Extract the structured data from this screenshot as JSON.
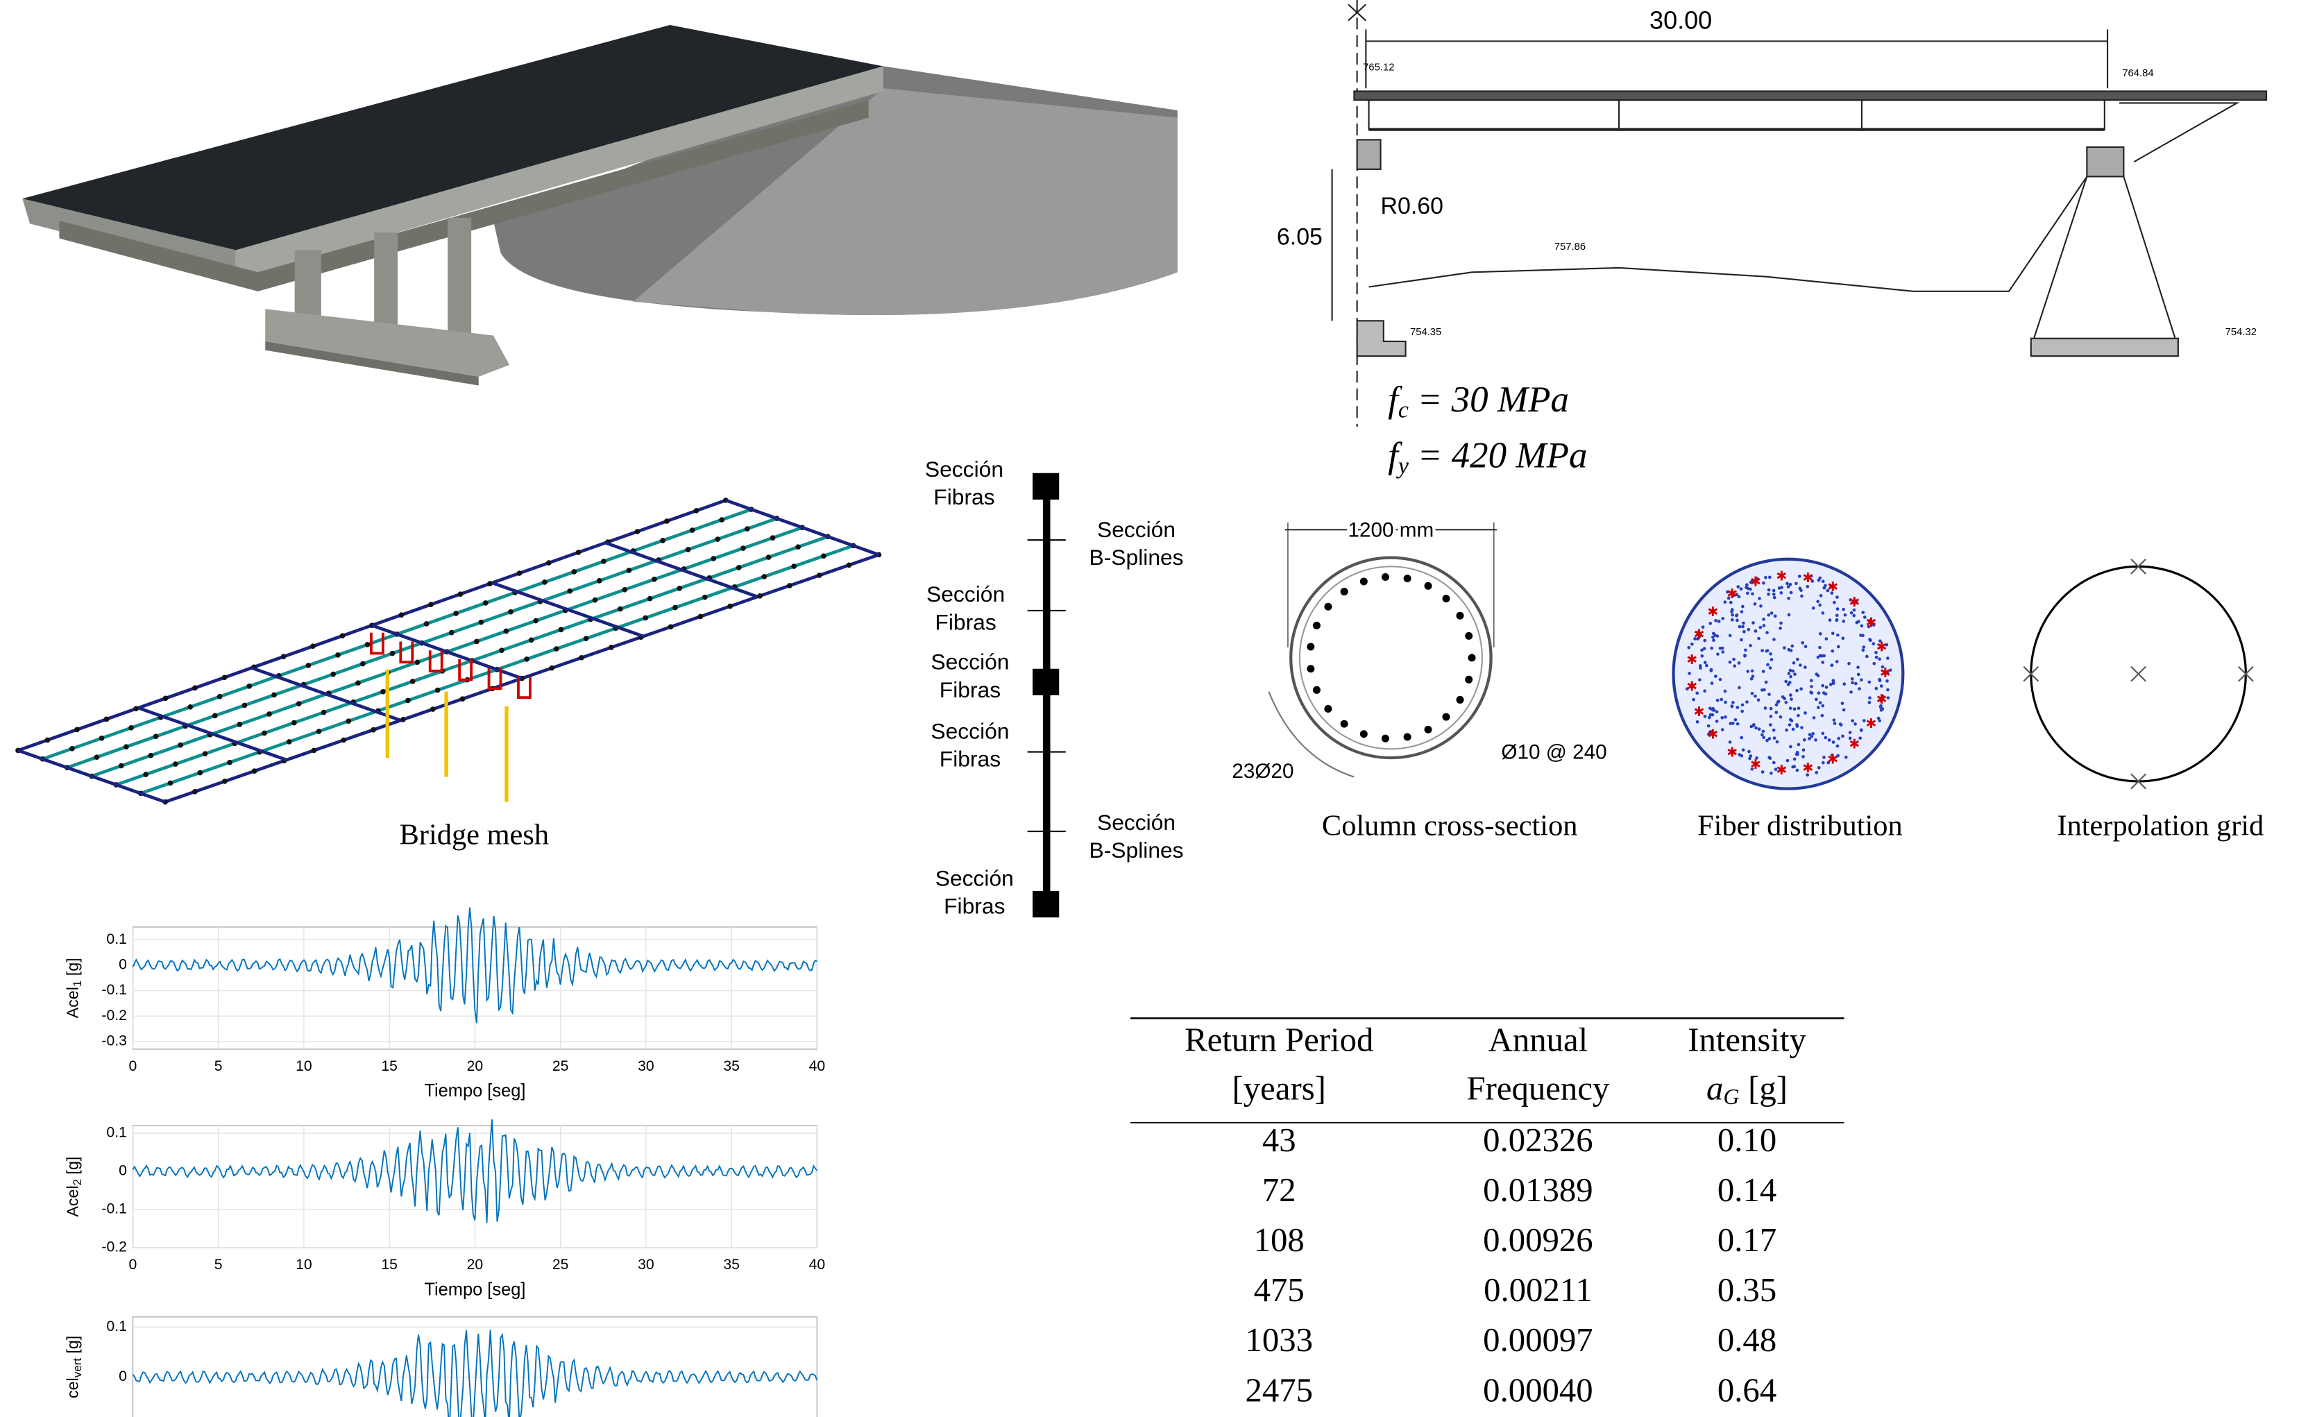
{
  "drawing": {
    "span": "30.00",
    "elev_left_top": "765.12",
    "elev_right_top": "764.84",
    "height": "6.05",
    "radius": "R0.60",
    "ground": "757.86",
    "elev_left_base": "754.35",
    "elev_right_base": "754.32",
    "fc": {
      "symbol": "f",
      "sub": "c",
      "text": "= 30 MPa"
    },
    "fy": {
      "symbol": "f",
      "sub": "y",
      "text": "= 420 MPa"
    }
  },
  "mesh_caption": "Bridge mesh",
  "element_labels": [
    [
      "Sección",
      "Fibras"
    ],
    [
      "Sección",
      "B-Splines"
    ],
    [
      "Sección",
      "Fibras"
    ],
    [
      "Sección",
      "Fibras"
    ],
    [
      "Sección",
      "Fibras"
    ],
    [
      "Sección",
      "B-Splines"
    ],
    [
      "Sección",
      "Fibras"
    ]
  ],
  "sections": {
    "diameter": "1200 mm",
    "bars": "23Ø20",
    "stirrups": "Ø10 @ 240",
    "captions": [
      "Column cross-section",
      "Fiber distribution",
      "Interpolation grid"
    ]
  },
  "accelerograms": [
    {
      "ylabel": {
        "text": "Acel",
        "sub": "1",
        "unit": "[g]"
      },
      "xlabel": "Tiempo [seg]",
      "xlim": [
        0,
        40
      ],
      "xticks": [
        0,
        5,
        10,
        15,
        20,
        25,
        30,
        35,
        40
      ],
      "ylim": [
        -0.33,
        0.15
      ],
      "yticks": [
        0.1,
        0,
        -0.1,
        -0.2,
        -0.3
      ]
    },
    {
      "ylabel": {
        "text": "Acel",
        "sub": "2",
        "unit": "[g]"
      },
      "xlabel": "Tiempo [seg]",
      "xlim": [
        0,
        40
      ],
      "xticks": [
        0,
        5,
        10,
        15,
        20,
        25,
        30,
        35,
        40
      ],
      "ylim": [
        -0.2,
        0.12
      ],
      "yticks": [
        0.1,
        0,
        -0.1,
        -0.2
      ]
    },
    {
      "ylabel": {
        "text": "cel",
        "sub": "vert",
        "unit": "[g]"
      },
      "xlim": [
        0,
        40
      ],
      "ylim": [
        -0.1,
        0.12
      ],
      "yticks": [
        0.1,
        0
      ]
    }
  ],
  "table": {
    "header": [
      [
        "Return Period",
        "[years]"
      ],
      [
        "Annual",
        "Frequency"
      ],
      [
        "Intensity",
        {
          "symbol": "a",
          "sub": "G",
          "unit": "[g]"
        }
      ]
    ],
    "rows": [
      [
        "43",
        "0.02326",
        "0.10"
      ],
      [
        "72",
        "0.01389",
        "0.14"
      ],
      [
        "108",
        "0.00926",
        "0.17"
      ],
      [
        "475",
        "0.00211",
        "0.35"
      ],
      [
        "1033",
        "0.00097",
        "0.48"
      ],
      [
        "2475",
        "0.00040",
        "0.64"
      ]
    ]
  }
}
